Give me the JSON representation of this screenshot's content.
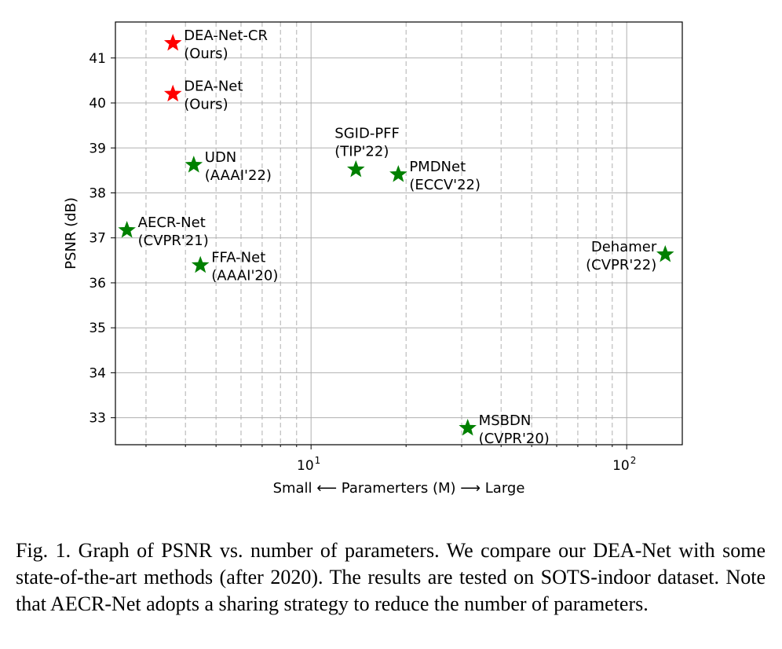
{
  "chart_data": {
    "type": "scatter",
    "xscale": "log",
    "xlim": [
      2.4,
      150
    ],
    "ylim": [
      32.4,
      41.8
    ],
    "xlabel": "Small ⟵ Paramerters (M) ⟶ Large",
    "ylabel": "PSNR (dB)",
    "yticks": [
      33,
      34,
      35,
      36,
      37,
      38,
      39,
      40,
      41
    ],
    "xticks_major": [
      {
        "value": 10,
        "base": "10",
        "exp": "1"
      },
      {
        "value": 100,
        "base": "10",
        "exp": "2"
      }
    ],
    "grid": true,
    "points": [
      {
        "name": "DEA-Net-CR",
        "venue": "(Ours)",
        "x": 3.65,
        "y": 41.33,
        "color": "#ff0000",
        "label_pos": "right"
      },
      {
        "name": "DEA-Net",
        "venue": "(Ours)",
        "x": 3.65,
        "y": 40.2,
        "color": "#ff0000",
        "label_pos": "right"
      },
      {
        "name": "UDN",
        "venue": "(AAAI'22)",
        "x": 4.25,
        "y": 38.62,
        "color": "#008000",
        "label_pos": "right"
      },
      {
        "name": "AECR-Net",
        "venue": "(CVPR'21)",
        "x": 2.61,
        "y": 37.17,
        "color": "#008000",
        "label_pos": "right"
      },
      {
        "name": "FFA-Net",
        "venue": "(AAAI'20)",
        "x": 4.46,
        "y": 36.39,
        "color": "#008000",
        "label_pos": "right"
      },
      {
        "name": "SGID-PFF",
        "venue": "(TIP'22)",
        "x": 13.87,
        "y": 38.52,
        "color": "#008000",
        "label_pos": "above-left"
      },
      {
        "name": "PMDNet",
        "venue": "(ECCV'22)",
        "x": 18.9,
        "y": 38.41,
        "color": "#008000",
        "label_pos": "right"
      },
      {
        "name": "MSBDN",
        "venue": "(CVPR'20)",
        "x": 31.35,
        "y": 32.77,
        "color": "#008000",
        "label_pos": "right"
      },
      {
        "name": "Dehamer",
        "venue": "(CVPR'22)",
        "x": 132.45,
        "y": 36.63,
        "color": "#008000",
        "label_pos": "left"
      }
    ]
  },
  "caption": "Fig. 1.  Graph of PSNR vs. number of parameters. We compare our DEA-Net with some state-of-the-art methods (after 2020). The results are tested on SOTS-indoor dataset. Note that AECR-Net adopts a sharing strategy to reduce the number of parameters."
}
